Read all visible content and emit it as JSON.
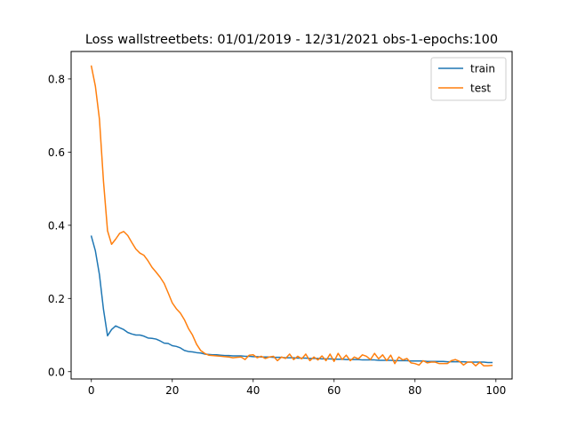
{
  "chart_data": {
    "type": "line",
    "title": "Loss wallstreetbets: 01/01/2019 - 12/31/2021  obs-1-epochs:100",
    "xlabel": "",
    "ylabel": "",
    "xlim": [
      -5,
      104
    ],
    "ylim": [
      -0.02,
      0.875
    ],
    "xticks": [
      0,
      20,
      40,
      60,
      80,
      100
    ],
    "yticks": [
      0.0,
      0.2,
      0.4,
      0.6,
      0.8
    ],
    "xtick_labels": [
      "0",
      "20",
      "40",
      "60",
      "80",
      "100"
    ],
    "ytick_labels": [
      "0.0",
      "0.2",
      "0.4",
      "0.6",
      "0.8"
    ],
    "grid": false,
    "legend_position": "top-right",
    "series": [
      {
        "name": "train",
        "color": "#1f77b4",
        "values": [
          0.37,
          0.33,
          0.265,
          0.17,
          0.098,
          0.115,
          0.125,
          0.12,
          0.115,
          0.107,
          0.103,
          0.1,
          0.1,
          0.097,
          0.092,
          0.091,
          0.089,
          0.084,
          0.078,
          0.077,
          0.071,
          0.069,
          0.065,
          0.058,
          0.055,
          0.054,
          0.052,
          0.051,
          0.048,
          0.047,
          0.046,
          0.046,
          0.045,
          0.044,
          0.044,
          0.043,
          0.043,
          0.043,
          0.042,
          0.042,
          0.041,
          0.041,
          0.04,
          0.04,
          0.04,
          0.039,
          0.039,
          0.039,
          0.038,
          0.038,
          0.038,
          0.037,
          0.037,
          0.037,
          0.036,
          0.036,
          0.036,
          0.035,
          0.035,
          0.035,
          0.034,
          0.034,
          0.034,
          0.033,
          0.033,
          0.033,
          0.033,
          0.032,
          0.032,
          0.032,
          0.032,
          0.031,
          0.031,
          0.031,
          0.031,
          0.03,
          0.03,
          0.03,
          0.03,
          0.029,
          0.029,
          0.029,
          0.029,
          0.028,
          0.028,
          0.028,
          0.028,
          0.028,
          0.027,
          0.027,
          0.027,
          0.027,
          0.027,
          0.026,
          0.026,
          0.026,
          0.026,
          0.026,
          0.025,
          0.025
        ]
      },
      {
        "name": "test",
        "color": "#ff7f0e",
        "values": [
          0.835,
          0.78,
          0.69,
          0.52,
          0.385,
          0.348,
          0.362,
          0.378,
          0.383,
          0.372,
          0.353,
          0.335,
          0.324,
          0.318,
          0.303,
          0.285,
          0.272,
          0.258,
          0.241,
          0.215,
          0.188,
          0.172,
          0.16,
          0.142,
          0.118,
          0.1,
          0.075,
          0.058,
          0.05,
          0.045,
          0.044,
          0.043,
          0.042,
          0.041,
          0.04,
          0.038,
          0.039,
          0.04,
          0.033,
          0.045,
          0.046,
          0.038,
          0.042,
          0.036,
          0.04,
          0.042,
          0.03,
          0.04,
          0.036,
          0.048,
          0.033,
          0.042,
          0.035,
          0.048,
          0.03,
          0.04,
          0.032,
          0.043,
          0.03,
          0.048,
          0.028,
          0.05,
          0.033,
          0.045,
          0.03,
          0.04,
          0.035,
          0.046,
          0.042,
          0.033,
          0.05,
          0.035,
          0.046,
          0.03,
          0.045,
          0.022,
          0.04,
          0.032,
          0.036,
          0.024,
          0.022,
          0.018,
          0.03,
          0.024,
          0.026,
          0.026,
          0.022,
          0.022,
          0.022,
          0.03,
          0.033,
          0.028,
          0.018,
          0.026,
          0.026,
          0.016,
          0.026,
          0.016,
          0.016,
          0.017
        ]
      }
    ]
  }
}
